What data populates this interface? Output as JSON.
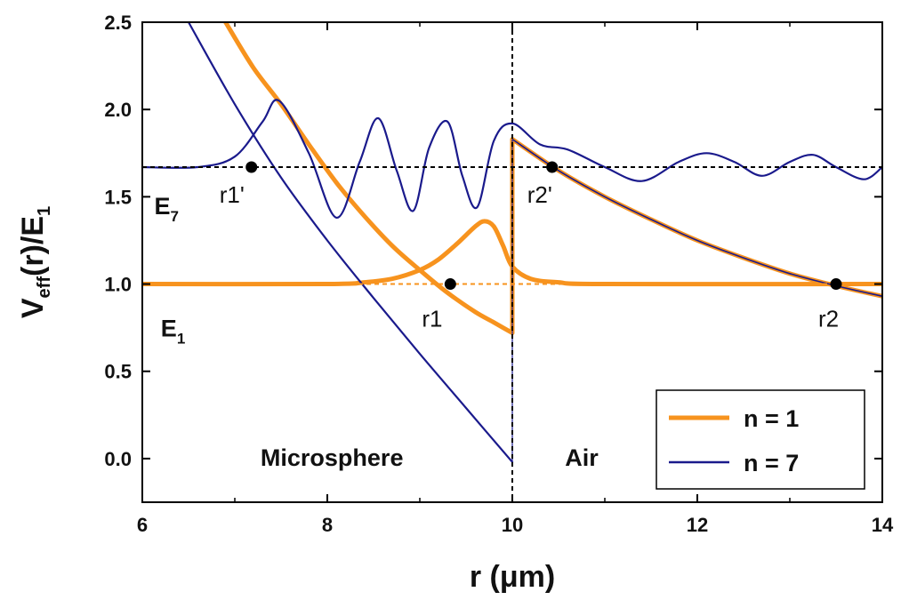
{
  "chart_data": {
    "type": "line",
    "xlabel": "r (μm)",
    "ylabel": {
      "main": "V",
      "sub": "eff",
      "rest": "(r)/E",
      "sub2": "1"
    },
    "xlim": [
      6,
      14
    ],
    "ylim": [
      -0.25,
      2.5
    ],
    "xticks": [
      "6",
      "8",
      "10",
      "12",
      "14"
    ],
    "xtick_values": [
      6,
      8,
      10,
      12,
      14
    ],
    "yticks": [
      "0.0",
      "0.5",
      "1.0",
      "1.5",
      "2.0",
      "2.5"
    ],
    "ytick_values": [
      0.0,
      0.5,
      1.0,
      1.5,
      2.0,
      2.5
    ],
    "grid": false,
    "legend_position": "bottom-right",
    "series": [
      {
        "name": "n = 1",
        "color": "#f7931e"
      },
      {
        "name": "n = 7",
        "color": "#1a1a8c"
      }
    ],
    "curves": {
      "potential_n1_inside": {
        "series": "n = 1",
        "x": [
          6.9,
          7.2,
          7.5,
          7.8,
          8.1,
          8.4,
          8.7,
          9.0,
          9.3,
          9.6,
          9.8,
          10.0
        ],
        "y": [
          2.5,
          2.24,
          2.03,
          1.8,
          1.58,
          1.39,
          1.22,
          1.08,
          0.95,
          0.84,
          0.78,
          0.72
        ]
      },
      "potential_n1_outside": {
        "series": "n = 1",
        "x": [
          10.0,
          10.5,
          11.0,
          11.5,
          12.0,
          12.5,
          13.0,
          13.5,
          14.0
        ],
        "y": [
          1.83,
          1.65,
          1.5,
          1.37,
          1.25,
          1.15,
          1.06,
          0.99,
          0.93
        ]
      },
      "wavefunction_n1": {
        "series": "n = 1",
        "x": [
          6.0,
          8.0,
          8.4,
          8.7,
          9.0,
          9.2,
          9.4,
          9.6,
          9.7,
          9.8,
          9.9,
          10.0,
          10.2,
          10.5,
          11.0,
          14.0
        ],
        "y": [
          1.0,
          1.0,
          1.01,
          1.03,
          1.08,
          1.14,
          1.23,
          1.33,
          1.36,
          1.33,
          1.22,
          1.1,
          1.03,
          1.01,
          1.0,
          1.0
        ]
      },
      "potential_n7_inside": {
        "series": "n = 7",
        "x": [
          6.5,
          7.0,
          7.5,
          8.0,
          8.5,
          9.0,
          9.5,
          10.0
        ],
        "y": [
          2.5,
          2.03,
          1.61,
          1.25,
          0.92,
          0.6,
          0.29,
          -0.02
        ]
      },
      "wavefunction_n7": {
        "series": "n = 7",
        "x": [
          6.0,
          6.6,
          7.0,
          7.3,
          7.48,
          7.8,
          8.1,
          8.35,
          8.55,
          8.75,
          8.93,
          9.1,
          9.3,
          9.46,
          9.62,
          9.8,
          10.0,
          10.3,
          10.6,
          11.0,
          11.4,
          11.8,
          12.1,
          12.4,
          12.7,
          13.0,
          13.25,
          13.5,
          13.8,
          14.0
        ],
        "y": [
          1.67,
          1.67,
          1.73,
          1.93,
          2.05,
          1.75,
          1.38,
          1.7,
          1.95,
          1.65,
          1.42,
          1.78,
          1.93,
          1.62,
          1.44,
          1.82,
          1.92,
          1.8,
          1.77,
          1.67,
          1.59,
          1.7,
          1.75,
          1.7,
          1.62,
          1.7,
          1.74,
          1.67,
          1.6,
          1.67
        ]
      }
    },
    "reference_lines": [
      {
        "kind": "horizontal",
        "y": 1.67,
        "style": "dashed",
        "color": "#000000"
      },
      {
        "kind": "horizontal",
        "y": 1.0,
        "style": "dashed",
        "color": "#f7931e"
      },
      {
        "kind": "vertical",
        "x": 10.0,
        "style": "dashed",
        "color": "#000000"
      }
    ],
    "points": [
      {
        "label": "r1'",
        "x": 7.18,
        "y": 1.67
      },
      {
        "label": "r2'",
        "x": 10.43,
        "y": 1.67
      },
      {
        "label": "r1",
        "x": 9.33,
        "y": 1.0
      },
      {
        "label": "r2",
        "x": 13.5,
        "y": 1.0
      }
    ],
    "level_labels": [
      {
        "main": "E",
        "sub": "7",
        "x": 6.13,
        "y": 1.4
      },
      {
        "main": "E",
        "sub": "1",
        "x": 6.2,
        "y": 0.7
      }
    ],
    "region_labels": [
      {
        "text": "Microsphere",
        "x": 8.05,
        "y": -0.04
      },
      {
        "text": "Air",
        "x": 10.75,
        "y": -0.04
      }
    ]
  }
}
